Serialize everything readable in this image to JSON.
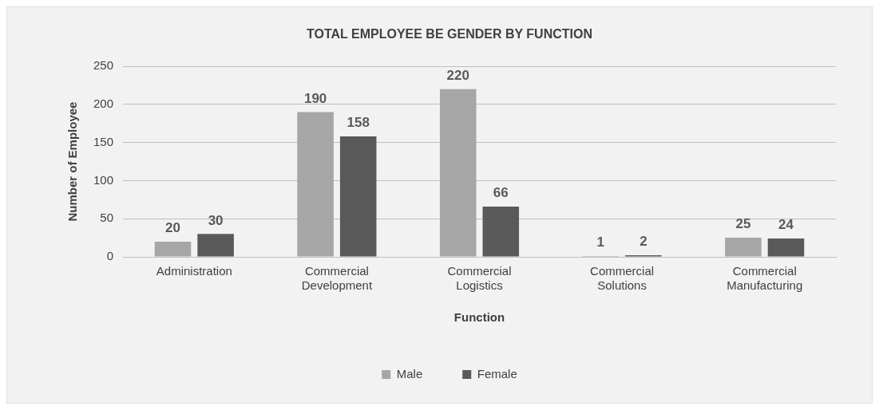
{
  "chart_data": {
    "type": "bar",
    "title": "TOTAL EMPLOYEE BE GENDER BY FUNCTION",
    "xlabel": "Function",
    "ylabel": "Number of Employee",
    "categories": [
      "Administration",
      "Commercial Development",
      "Commercial Logistics",
      "Commercial Solutions",
      "Commercial Manufacturing"
    ],
    "series": [
      {
        "name": "Male",
        "color": "#a6a6a6",
        "values": [
          20,
          190,
          220,
          1,
          25
        ]
      },
      {
        "name": "Female",
        "color": "#595959",
        "values": [
          30,
          158,
          66,
          2,
          24
        ]
      }
    ],
    "ylim": [
      0,
      250
    ],
    "yticks": [
      0,
      50,
      100,
      150,
      200,
      250
    ],
    "grid": "y",
    "legend": "bottom",
    "data_labels": true
  }
}
